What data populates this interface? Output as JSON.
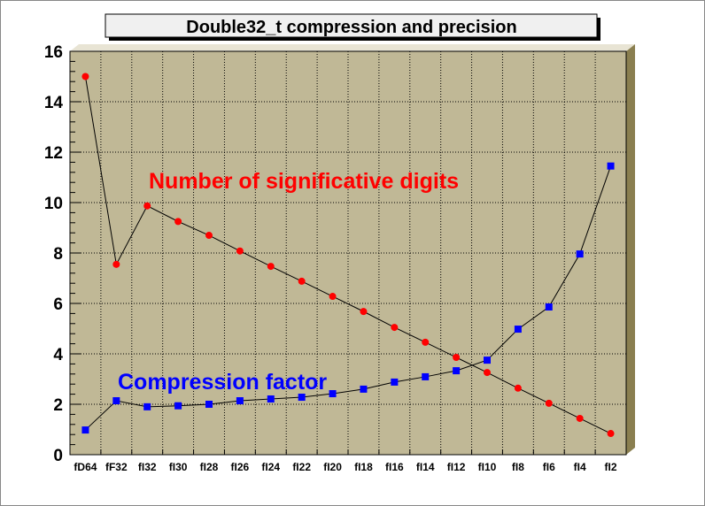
{
  "chart_data": {
    "type": "line",
    "title": "Double32_t compression and precision",
    "categories": [
      "fD64",
      "fF32",
      "fI32",
      "fI30",
      "fI28",
      "fI26",
      "fI24",
      "fI22",
      "fI20",
      "fI18",
      "fI16",
      "fI14",
      "fI12",
      "fI10",
      "fI8",
      "fI6",
      "fI4",
      "fI2"
    ],
    "ylim": [
      0,
      16
    ],
    "yticks": [
      0,
      2,
      4,
      6,
      8,
      10,
      12,
      14,
      16
    ],
    "grid": true,
    "background": "#c0b896",
    "series": [
      {
        "name": "Number of significative digits",
        "color": "#ff0000",
        "marker": "circle",
        "values": [
          15.0,
          7.55,
          9.87,
          9.25,
          8.7,
          8.08,
          7.47,
          6.88,
          6.28,
          5.68,
          5.05,
          4.46,
          3.86,
          3.26,
          2.64,
          2.04,
          1.44,
          0.84
        ]
      },
      {
        "name": "Compression factor",
        "color": "#0000ff",
        "marker": "square",
        "values": [
          0.98,
          2.14,
          1.9,
          1.94,
          2.0,
          2.14,
          2.21,
          2.28,
          2.42,
          2.6,
          2.88,
          3.09,
          3.33,
          3.75,
          4.98,
          5.86,
          7.96,
          11.45
        ]
      }
    ]
  }
}
